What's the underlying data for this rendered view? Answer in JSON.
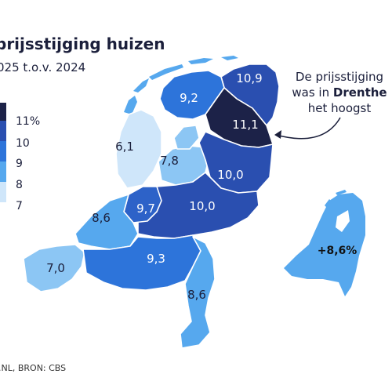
{
  "title": "prijsstijging huizen",
  "subtitle": "025 t.o.v. 2024",
  "source": ".NL, BRON: CBS",
  "legend": {
    "labels": [
      "11%",
      "10",
      "9",
      "8",
      "7"
    ],
    "colors": [
      "#1c2248",
      "#2a4fb0",
      "#2d74da",
      "#56a8ee",
      "#cfe6fa"
    ]
  },
  "annotation": {
    "line1": "De prijsstijging",
    "line2_prefix": "was in ",
    "line2_highlight": "Drenthe",
    "line3": "het hoogst"
  },
  "inset_label": "+8,6%",
  "provinces": {
    "groningen": {
      "label": "10,9",
      "value": 10.9,
      "color": "#2a4fb0"
    },
    "friesland": {
      "label": "9,2",
      "value": 9.2,
      "color": "#2d74da"
    },
    "drenthe": {
      "label": "11,1",
      "value": 11.1,
      "color": "#1c2248"
    },
    "noordholland": {
      "label": "6,1",
      "value": 6.1,
      "color": "#cfe6fa"
    },
    "flevoland": {
      "label": "7,8",
      "value": 7.8,
      "color": "#8cc6f4"
    },
    "overijssel": {
      "label": "10,0",
      "value": 10.0,
      "color": "#2a4fb0"
    },
    "gelderland": {
      "label": "10,0",
      "value": 10.0,
      "color": "#2a4fb0"
    },
    "utrecht": {
      "label": "9,7",
      "value": 9.7,
      "color": "#2d62c8"
    },
    "zuidholland": {
      "label": "8,6",
      "value": 8.6,
      "color": "#56a8ee"
    },
    "zeeland": {
      "label": "7,0",
      "value": 7.0,
      "color": "#8cc6f4"
    },
    "noordbrabant": {
      "label": "9,3",
      "value": 9.3,
      "color": "#2d74da"
    },
    "limburg": {
      "label": "8,6",
      "value": 8.6,
      "color": "#56a8ee"
    }
  },
  "colors": {
    "inset": "#56a8ee",
    "wadden": "#56a8ee",
    "text_dark": "#1b1f3b"
  }
}
